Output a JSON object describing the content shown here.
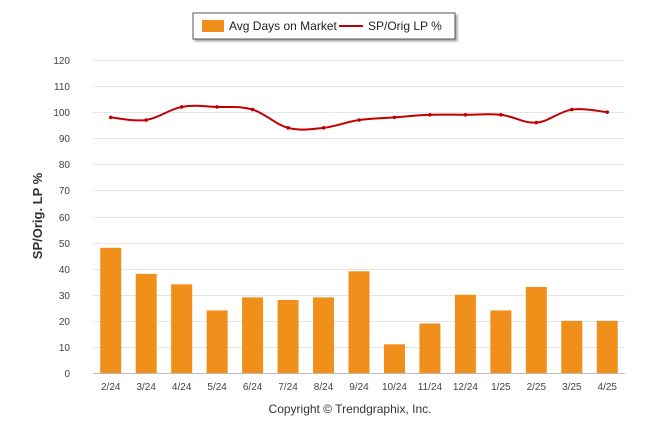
{
  "chart_data": {
    "type": "bar",
    "categories": [
      "2/24",
      "3/24",
      "4/24",
      "5/24",
      "6/24",
      "7/24",
      "8/24",
      "9/24",
      "10/24",
      "11/24",
      "12/24",
      "1/25",
      "2/25",
      "3/25",
      "4/25"
    ],
    "series": [
      {
        "name": "Avg Days on Market",
        "type": "bar",
        "color": "#F0901B",
        "values": [
          48,
          38,
          34,
          24,
          29,
          28,
          29,
          39,
          11,
          19,
          30,
          24,
          33,
          20,
          20
        ]
      },
      {
        "name": "SP/Orig LP %",
        "type": "line",
        "color": "#C00000",
        "values": [
          98,
          97,
          102,
          102,
          101,
          94,
          94,
          97,
          98,
          99,
          99,
          99,
          96,
          101,
          100
        ]
      }
    ],
    "ylabel": "SP/Orig. LP %",
    "xlabel": "",
    "ylim": [
      0,
      120
    ],
    "yticks": [
      0,
      10,
      20,
      30,
      40,
      50,
      60,
      70,
      80,
      90,
      100,
      110,
      120
    ],
    "grid": true,
    "legend_position": "top-center",
    "footer": "Copyright © Trendgraphix, Inc."
  }
}
